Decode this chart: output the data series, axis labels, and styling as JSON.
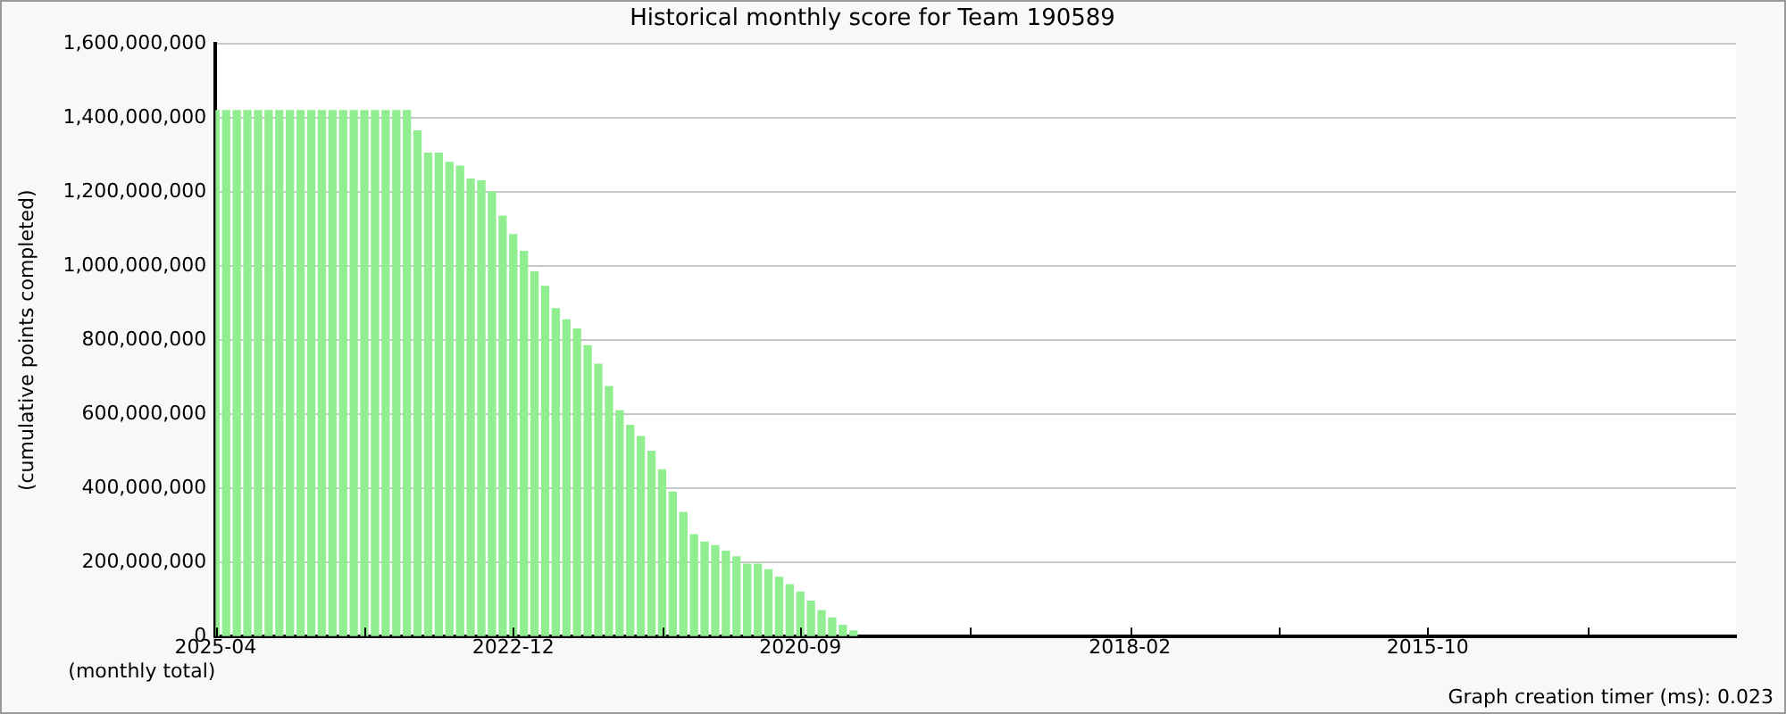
{
  "chart_data": {
    "type": "bar",
    "title": "Historical monthly score for Team 190589",
    "xlabel": "(monthly total)",
    "ylabel": "(cumulative points completed)",
    "x": [
      "2025-04",
      "2025-03",
      "2025-02",
      "2025-01",
      "2024-12",
      "2024-11",
      "2024-10",
      "2024-09",
      "2024-08",
      "2024-07",
      "2024-06",
      "2024-05",
      "2024-04",
      "2024-03",
      "2024-02",
      "2024-01",
      "2023-12",
      "2023-11",
      "2023-10",
      "2023-09",
      "2023-08",
      "2023-07",
      "2023-06",
      "2023-05",
      "2023-04",
      "2023-03",
      "2023-02",
      "2023-01",
      "2022-12",
      "2022-11",
      "2022-10",
      "2022-09",
      "2022-08",
      "2022-07",
      "2022-06",
      "2022-05",
      "2022-04",
      "2022-03",
      "2022-02",
      "2022-01",
      "2021-12",
      "2021-11",
      "2021-10",
      "2021-09",
      "2021-08",
      "2021-07",
      "2021-06",
      "2021-05",
      "2021-04",
      "2021-03",
      "2021-02",
      "2021-01",
      "2020-12",
      "2020-11",
      "2020-10",
      "2020-09",
      "2020-08",
      "2020-07",
      "2020-06",
      "2020-05",
      "2020-04"
    ],
    "values": [
      1420000000,
      1420000000,
      1420000000,
      1420000000,
      1420000000,
      1420000000,
      1420000000,
      1420000000,
      1420000000,
      1420000000,
      1420000000,
      1420000000,
      1420000000,
      1420000000,
      1420000000,
      1420000000,
      1420000000,
      1420000000,
      1420000000,
      1365000000,
      1305000000,
      1305000000,
      1280000000,
      1270000000,
      1235000000,
      1230000000,
      1200000000,
      1135000000,
      1085000000,
      1040000000,
      985000000,
      945000000,
      885000000,
      855000000,
      830000000,
      785000000,
      735000000,
      675000000,
      610000000,
      570000000,
      540000000,
      500000000,
      450000000,
      390000000,
      335000000,
      275000000,
      255000000,
      245000000,
      230000000,
      215000000,
      195000000,
      195000000,
      180000000,
      160000000,
      140000000,
      120000000,
      95000000,
      70000000,
      50000000,
      30000000,
      15000000
    ],
    "color": "#90ee90",
    "xlim": [
      "2025-04",
      "2013-05"
    ],
    "xticks": [
      {
        "value": "2025-04",
        "label": "2025-04"
      },
      {
        "value": "2024-02",
        "label": null
      },
      {
        "value": "2022-12",
        "label": "2022-12"
      },
      {
        "value": "2021-10",
        "label": null
      },
      {
        "value": "2020-09",
        "label": "2020-09"
      },
      {
        "value": "2019-05",
        "label": null
      },
      {
        "value": "2018-02",
        "label": "2018-02"
      },
      {
        "value": "2016-12",
        "label": null
      },
      {
        "value": "2015-10",
        "label": "2015-10"
      },
      {
        "value": "2014-07",
        "label": null
      }
    ],
    "ylim": [
      0,
      1600000000
    ],
    "yticks": [
      {
        "value": 0,
        "label": "0"
      },
      {
        "value": 200000000,
        "label": "200,000,000"
      },
      {
        "value": 400000000,
        "label": "400,000,000"
      },
      {
        "value": 600000000,
        "label": "600,000,000"
      },
      {
        "value": 800000000,
        "label": "800,000,000"
      },
      {
        "value": 1000000000,
        "label": "1,000,000,000"
      },
      {
        "value": 1200000000,
        "label": "1,200,000,000"
      },
      {
        "value": 1400000000,
        "label": "1,400,000,000"
      },
      {
        "value": 1600000000,
        "label": "1,600,000,000"
      }
    ],
    "grid": "y",
    "annotations": [
      "Graph creation timer (ms): 0.023"
    ]
  }
}
